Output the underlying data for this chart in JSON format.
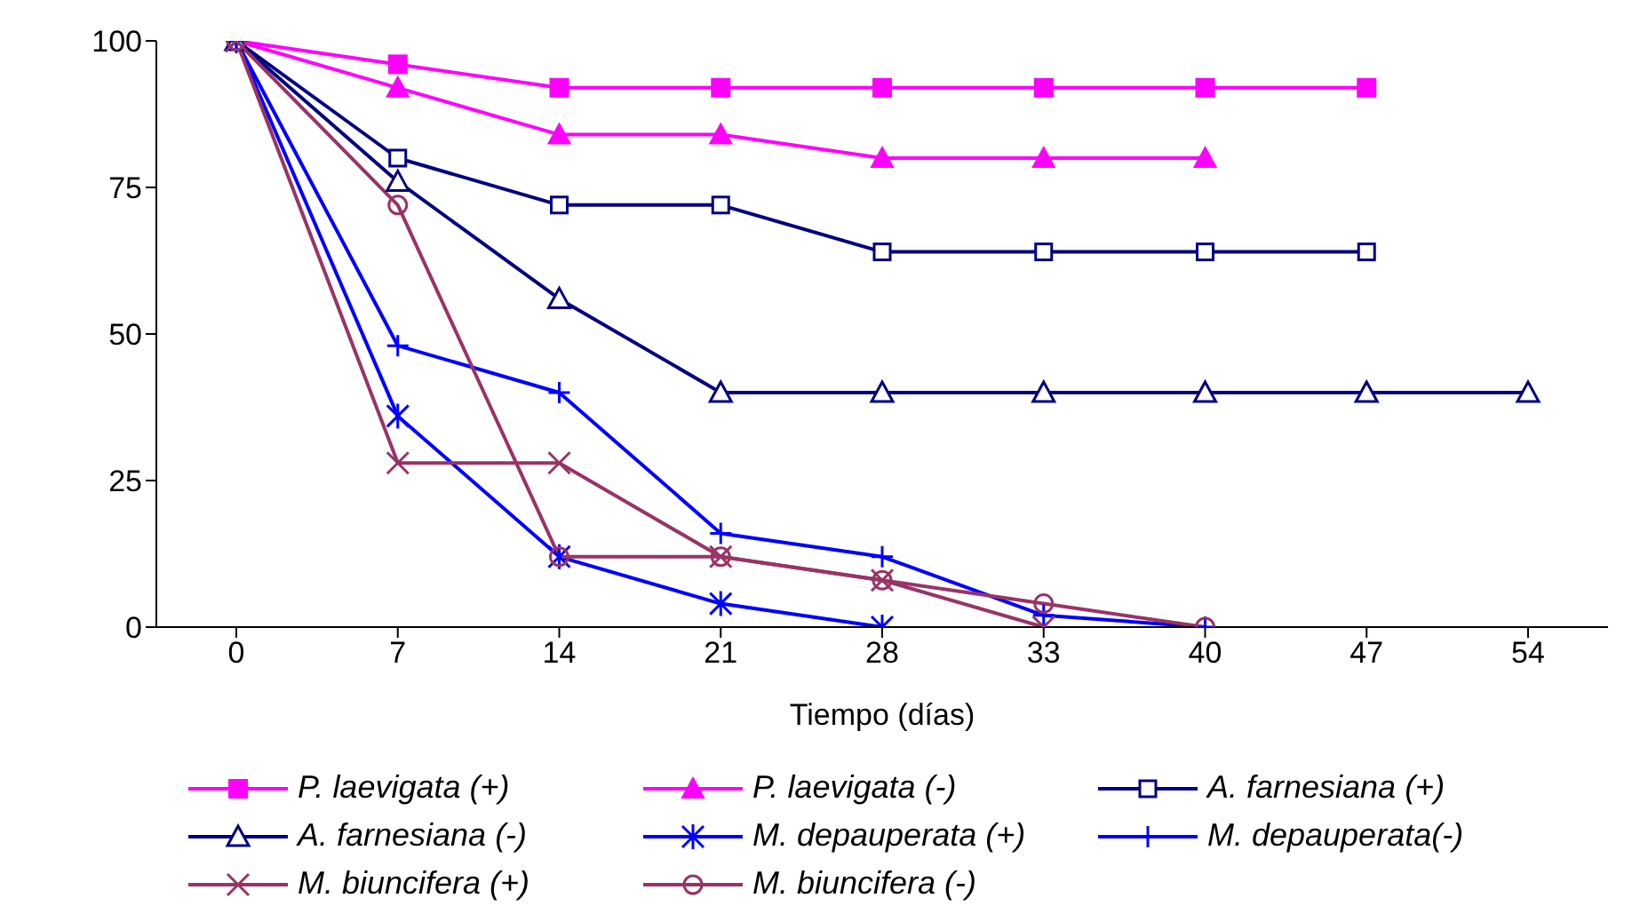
{
  "chart_data": {
    "type": "line",
    "xlabel": "Tiempo (días)",
    "categories": [
      "0",
      "7",
      "14",
      "21",
      "28",
      "33",
      "40",
      "47",
      "54"
    ],
    "ylim": [
      0,
      100
    ],
    "yticks": [
      0,
      25,
      50,
      75,
      100
    ],
    "grid": false,
    "legend": "bottom",
    "series": [
      {
        "name": "P. laevigata (+)",
        "color": "#ff00ff",
        "marker": "square",
        "values": [
          100,
          96,
          92,
          92,
          92,
          92,
          92,
          92,
          null
        ]
      },
      {
        "name": "P. laevigata (-)",
        "color": "#ff00ff",
        "marker": "triangle",
        "values": [
          100,
          92,
          84,
          84,
          80,
          80,
          80,
          null,
          null
        ]
      },
      {
        "name": "A. farnesiana (+)",
        "color": "#000080",
        "marker": "square-open",
        "values": [
          100,
          80,
          72,
          72,
          64,
          64,
          64,
          64,
          null
        ]
      },
      {
        "name": "A. farnesiana (-)",
        "color": "#000080",
        "marker": "triangle-open",
        "values": [
          100,
          76,
          56,
          40,
          40,
          40,
          40,
          40,
          40
        ]
      },
      {
        "name": "M. depauperata (+)",
        "color": "#0000ff",
        "marker": "cross",
        "values": [
          100,
          36,
          12,
          4,
          0,
          null,
          null,
          null,
          null
        ]
      },
      {
        "name": "M. depauperata(-)",
        "color": "#0000ff",
        "marker": "plus",
        "values": [
          100,
          48,
          40,
          16,
          12,
          2,
          0,
          null,
          null
        ]
      },
      {
        "name": "M. biuncifera (+)",
        "color": "#993366",
        "marker": "x",
        "values": [
          100,
          28,
          28,
          12,
          8,
          0,
          null,
          null,
          null
        ]
      },
      {
        "name": "M. biuncifera (-)",
        "color": "#993366",
        "marker": "circle-open",
        "values": [
          100,
          72,
          12,
          12,
          8,
          4,
          0,
          null,
          null
        ]
      }
    ]
  }
}
